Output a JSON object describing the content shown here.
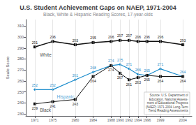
{
  "chart_data": {
    "type": "line",
    "title": "U.S. Student Achievement Gaps on NAEP, 1971-2004",
    "subtitle": "Black, White & Hispanic Reading Scores, 17-year-olds",
    "x": [
      1971,
      1975,
      1980,
      1984,
      1988,
      1990,
      1992,
      1994,
      1996,
      1999,
      2004
    ],
    "series": [
      {
        "name": "White",
        "color": "#111111",
        "marker": "square",
        "values": [
          291,
          296,
          293,
          295,
          296,
          297,
          297,
          296,
          296,
          296,
          293
        ]
      },
      {
        "name": "Hispanic",
        "color": "#1a8ccc",
        "marker": "diamond",
        "values": [
          252,
          252,
          261,
          268,
          274,
          275,
          271,
          266,
          265,
          271,
          264
        ]
      },
      {
        "name": "Black",
        "color": "#111111",
        "marker": "square",
        "values": [
          239,
          241,
          243,
          264,
          274,
          267,
          261,
          263,
          265,
          264,
          264
        ]
      }
    ],
    "xlim": [
      1969,
      2006
    ],
    "xticks": [
      1971,
      1975,
      1980,
      1984,
      1988,
      1990,
      1992,
      1994,
      1996,
      1999,
      2004
    ],
    "ylim": [
      228,
      316
    ],
    "yticks": [
      230,
      240,
      250,
      260,
      270,
      280,
      290,
      300,
      310
    ],
    "ylabel": "Scale Score",
    "grid": "x",
    "data_labels": true,
    "annotations": [
      {
        "text": "White",
        "x": 1971.5,
        "y": 288
      },
      {
        "text": "Hispanic",
        "x": 1975.3,
        "y": 249.5
      },
      {
        "text": "Black",
        "x": 1971.5,
        "y": 237.5
      }
    ],
    "source": {
      "text": "Source: U.S. Department of\nEducation, National Assess-\nment of Educational Progress\n(NAEP) 1971-2004 Long-Term\nTrend Reading Assessments",
      "x": 2005.5,
      "y": 229.5
    }
  }
}
